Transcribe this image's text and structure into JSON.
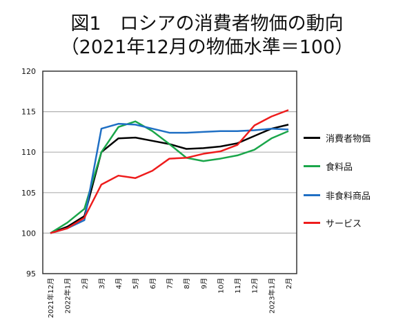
{
  "chart_data": {
    "type": "line",
    "title": "図1　ロシアの消費者物価の動向",
    "subtitle": "（2021年12月の物価水準＝100）",
    "xlabel": "",
    "ylabel": "",
    "ylim": [
      95,
      120
    ],
    "yticks": [
      "95",
      "100",
      "105",
      "110",
      "115",
      "120"
    ],
    "grid": true,
    "legend_placement": "right",
    "categories": [
      "2021年12月",
      "2022年1月",
      "2月",
      "3月",
      "4月",
      "5月",
      "6月",
      "7月",
      "8月",
      "9月",
      "10月",
      "11月",
      "12月",
      "2023年1月",
      "2月"
    ],
    "series": [
      {
        "name": "消費者物価",
        "color": "#000000",
        "values": [
          100,
          100.8,
          102.1,
          110.0,
          111.7,
          111.8,
          111.4,
          111.0,
          110.4,
          110.5,
          110.7,
          111.1,
          112.0,
          112.9,
          113.4
        ]
      },
      {
        "name": "食料品",
        "color": "#1aa64a",
        "values": [
          100,
          101.3,
          103.0,
          110.0,
          113.1,
          113.8,
          112.6,
          111.0,
          109.3,
          108.9,
          109.2,
          109.6,
          110.3,
          111.7,
          112.6
        ]
      },
      {
        "name": "非食料商品",
        "color": "#1f6fc4",
        "values": [
          100,
          100.6,
          101.6,
          112.9,
          113.5,
          113.4,
          112.9,
          112.4,
          112.4,
          112.5,
          112.6,
          112.6,
          112.7,
          112.9,
          112.8
        ]
      },
      {
        "name": "サービス",
        "color": "#ee1c1c",
        "values": [
          100,
          100.6,
          101.9,
          106.0,
          107.1,
          106.8,
          107.7,
          109.2,
          109.3,
          109.8,
          110.1,
          110.9,
          113.3,
          114.4,
          115.2
        ]
      }
    ]
  }
}
